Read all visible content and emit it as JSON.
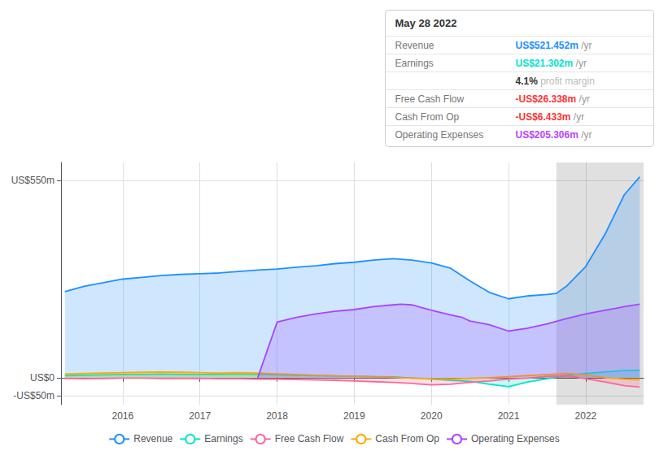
{
  "chart_data": {
    "type": "line",
    "xlim": [
      2015.2,
      2022.75
    ],
    "xticks": [
      2016,
      2017,
      2018,
      2019,
      2020,
      2021,
      2022
    ],
    "ylim": [
      -75,
      600
    ],
    "yticks": [
      {
        "value": -50,
        "label": "-US$50m"
      },
      {
        "value": 0,
        "label": "US$0"
      },
      {
        "value": 550,
        "label": "US$550m"
      }
    ],
    "grid": true,
    "highlight_x": [
      2021.62,
      2022.75
    ],
    "series": [
      {
        "name": "Revenue",
        "color": "#1e90ff",
        "x": [
          2015.25,
          2015.5,
          2015.75,
          2016.0,
          2016.25,
          2016.5,
          2016.75,
          2017.0,
          2017.25,
          2017.5,
          2017.75,
          2018.0,
          2018.25,
          2018.5,
          2018.75,
          2019.0,
          2019.25,
          2019.5,
          2019.75,
          2020.0,
          2020.25,
          2020.5,
          2020.75,
          2021.0,
          2021.25,
          2021.5,
          2021.62,
          2021.75,
          2022.0,
          2022.25,
          2022.5,
          2022.7
        ],
        "values": [
          240,
          255,
          265,
          275,
          280,
          285,
          288,
          290,
          292,
          296,
          300,
          303,
          308,
          312,
          318,
          322,
          328,
          332,
          328,
          320,
          305,
          270,
          238,
          220,
          228,
          232,
          235,
          255,
          310,
          400,
          510,
          560
        ]
      },
      {
        "name": "Earnings",
        "color": "#00e5cc",
        "x": [
          2015.25,
          2015.5,
          2015.75,
          2016.0,
          2016.25,
          2016.5,
          2016.75,
          2017.0,
          2017.25,
          2017.5,
          2017.75,
          2018.0,
          2018.25,
          2018.5,
          2018.75,
          2019.0,
          2019.25,
          2019.5,
          2019.75,
          2020.0,
          2020.25,
          2020.5,
          2020.75,
          2021.0,
          2021.25,
          2021.5,
          2021.75,
          2022.0,
          2022.25,
          2022.5,
          2022.7
        ],
        "values": [
          6,
          7,
          8,
          9,
          9,
          10,
          9,
          9,
          9,
          10,
          9,
          8,
          7,
          6,
          5,
          4,
          3,
          2,
          -1,
          -4,
          -7,
          -10,
          -18,
          -25,
          -12,
          -3,
          6,
          12,
          16,
          20,
          21
        ]
      },
      {
        "name": "Free Cash Flow",
        "color": "#ff6699",
        "x": [
          2015.25,
          2015.5,
          2015.75,
          2016.0,
          2016.25,
          2016.5,
          2016.75,
          2017.0,
          2017.25,
          2017.5,
          2017.75,
          2018.0,
          2018.25,
          2018.5,
          2018.75,
          2019.0,
          2019.25,
          2019.5,
          2019.75,
          2020.0,
          2020.25,
          2020.5,
          2020.75,
          2021.0,
          2021.25,
          2021.5,
          2021.75,
          2022.0,
          2022.25,
          2022.5,
          2022.7
        ],
        "values": [
          -2,
          -3,
          -2,
          -1,
          -1,
          -2,
          -2,
          -2,
          -3,
          -3,
          -4,
          -4,
          -5,
          -6,
          -7,
          -9,
          -11,
          -13,
          -16,
          -20,
          -18,
          -13,
          -9,
          -4,
          -1,
          4,
          6,
          -3,
          -12,
          -22,
          -26
        ]
      },
      {
        "name": "Cash From Op",
        "color": "#ffaa00",
        "x": [
          2015.25,
          2015.5,
          2015.75,
          2016.0,
          2016.25,
          2016.5,
          2016.75,
          2017.0,
          2017.25,
          2017.5,
          2017.75,
          2018.0,
          2018.25,
          2018.5,
          2018.75,
          2019.0,
          2019.25,
          2019.5,
          2019.75,
          2020.0,
          2020.25,
          2020.5,
          2020.75,
          2021.0,
          2021.25,
          2021.5,
          2021.75,
          2022.0,
          2022.25,
          2022.5,
          2022.7
        ],
        "values": [
          10,
          12,
          13,
          14,
          15,
          16,
          15,
          14,
          13,
          14,
          13,
          11,
          9,
          7,
          5,
          4,
          3,
          1,
          -1,
          -3,
          -4,
          -2,
          0,
          3,
          6,
          9,
          12,
          8,
          0,
          -4,
          -6
        ]
      },
      {
        "name": "Operating Expenses",
        "color": "#aa44ff",
        "x": [
          2017.75,
          2018.0,
          2018.25,
          2018.5,
          2018.75,
          2019.0,
          2019.25,
          2019.5,
          2019.6,
          2019.75,
          2020.0,
          2020.25,
          2020.4,
          2020.5,
          2020.75,
          2021.0,
          2021.25,
          2021.5,
          2021.75,
          2022.0,
          2022.25,
          2022.5,
          2022.7
        ],
        "values": [
          0,
          155,
          168,
          178,
          185,
          190,
          198,
          203,
          205,
          203,
          188,
          175,
          168,
          158,
          148,
          130,
          138,
          150,
          165,
          178,
          188,
          198,
          205
        ]
      }
    ],
    "tooltip": {
      "title": "May 28 2022",
      "rows": [
        {
          "label": "Revenue",
          "value": "US$521.452m",
          "unit": "/yr",
          "color": "#1e90ff"
        },
        {
          "label": "Earnings",
          "value": "US$21.302m",
          "unit": "/yr",
          "color": "#00e5cc"
        },
        {
          "value": "4.1%",
          "text": "profit margin",
          "color": "#bbbbbb"
        },
        {
          "label": "Free Cash Flow",
          "value": "-US$26.338m",
          "unit": "/yr",
          "color": "#ff3333"
        },
        {
          "label": "Cash From Op",
          "value": "-US$6.433m",
          "unit": "/yr",
          "color": "#ff3333"
        },
        {
          "label": "Operating Expenses",
          "value": "US$205.306m",
          "unit": "/yr",
          "color": "#bb44ff"
        }
      ]
    }
  }
}
